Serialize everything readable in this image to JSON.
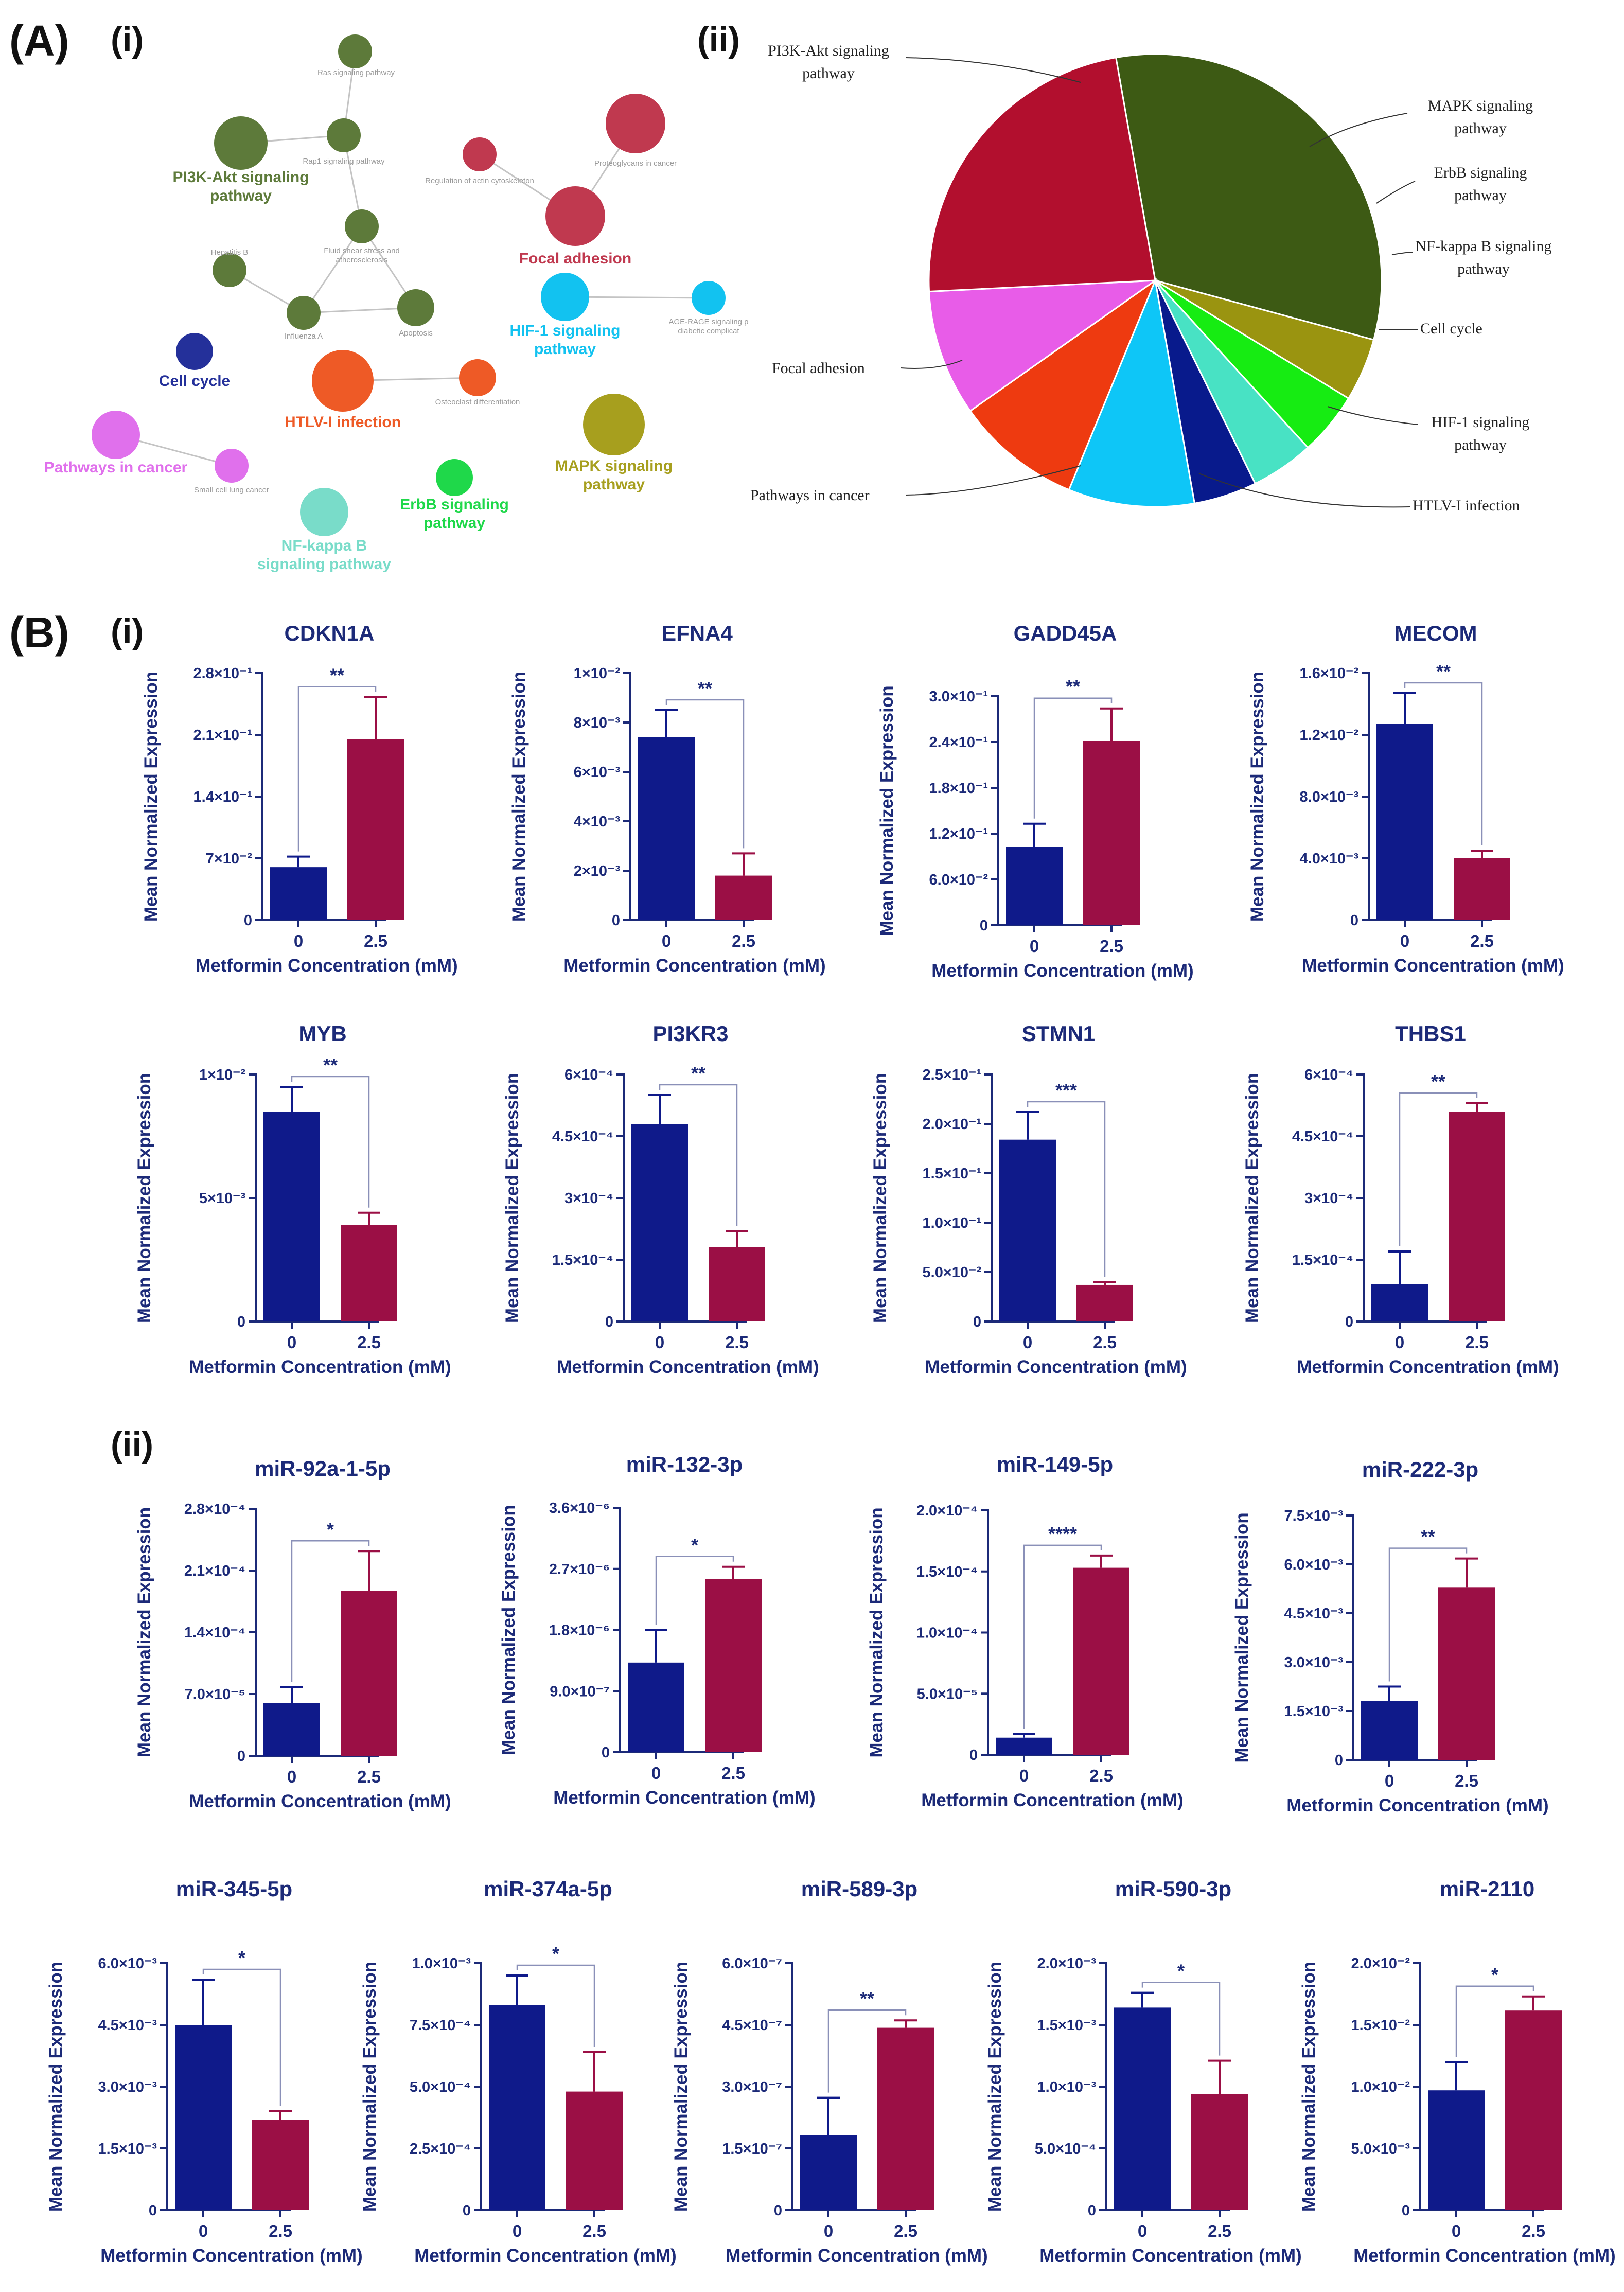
{
  "panel_labels": {
    "A": "(A)",
    "A_i": "(i)",
    "A_ii": "(ii)",
    "B": "(B)",
    "B_i": "(i)",
    "B_ii": "(ii)"
  },
  "colors": {
    "control": "#0f1a8a",
    "treated": "#9b0f45",
    "axis": "#1c2a78",
    "sig_line": "#8a90b8"
  },
  "network": {
    "nodes": [
      {
        "id": "ras",
        "label": "Ras signaling pathway",
        "color": "#5d7a3a",
        "kind": "small"
      },
      {
        "id": "pi3k",
        "label": "PI3K-Akt signaling pathway",
        "color": "#5d7a3a",
        "kind": "main"
      },
      {
        "id": "rap1",
        "label": "Rap1 signaling pathway",
        "color": "#5d7a3a",
        "kind": "small"
      },
      {
        "id": "fluid",
        "label": "Fluid shear stress and atherosclerosis",
        "color": "#5d7a3a",
        "kind": "small"
      },
      {
        "id": "hepb",
        "label": "Hepatitis B",
        "color": "#5d7a3a",
        "kind": "small"
      },
      {
        "id": "flua",
        "label": "Influenza A",
        "color": "#5d7a3a",
        "kind": "small"
      },
      {
        "id": "apop",
        "label": "Apoptosis",
        "color": "#5d7a3a",
        "kind": "small"
      },
      {
        "id": "actin",
        "label": "Regulation of actin cytoskeleton",
        "color": "#c0394f",
        "kind": "small"
      },
      {
        "id": "proteo",
        "label": "Proteoglycans in cancer",
        "color": "#c0394f",
        "kind": "small"
      },
      {
        "id": "focal",
        "label": "Focal adhesion",
        "color": "#c0394f",
        "kind": "main"
      },
      {
        "id": "hif1",
        "label": "HIF-1 signaling pathway",
        "color": "#12c2f0",
        "kind": "main"
      },
      {
        "id": "age",
        "label": "AGE-RAGE signaling p diabetic complicat",
        "color": "#12c2f0",
        "kind": "small"
      },
      {
        "id": "cell",
        "label": "Cell cycle",
        "color": "#24309a",
        "kind": "main"
      },
      {
        "id": "htlv",
        "label": "HTLV-I infection",
        "color": "#ee5a26",
        "kind": "main"
      },
      {
        "id": "osteo",
        "label": "Osteoclast differentiation",
        "color": "#ee5a26",
        "kind": "small"
      },
      {
        "id": "mapk",
        "label": "MAPK signaling pathway",
        "color": "#a79f1e",
        "kind": "main"
      },
      {
        "id": "pathc",
        "label": "Pathways in cancer",
        "color": "#e070ec",
        "kind": "main"
      },
      {
        "id": "sclc",
        "label": "Small cell lung cancer",
        "color": "#e070ec",
        "kind": "small"
      },
      {
        "id": "erbb",
        "label": "ErbB signaling pathway",
        "color": "#1fd84a",
        "kind": "main"
      },
      {
        "id": "nfkb",
        "label": "NF-kappa B signaling pathway",
        "color": "#79dcc9",
        "kind": "main"
      }
    ]
  },
  "chart_data": [
    {
      "type": "pie",
      "title": "",
      "slices": [
        {
          "label": "PI3K-Akt signaling pathway",
          "value": 32,
          "color": "#3d5a14"
        },
        {
          "label": "MAPK signaling pathway",
          "value": 4.5,
          "color": "#9a9410"
        },
        {
          "label": "ErbB signaling pathway",
          "value": 4.5,
          "color": "#16ec12"
        },
        {
          "label": "NF-kappa B signaling pathway",
          "value": 4.5,
          "color": "#48e2c4"
        },
        {
          "label": "Cell cycle",
          "value": 4.5,
          "color": "#081a8c"
        },
        {
          "label": "HIF-1 signaling pathway",
          "value": 9,
          "color": "#0ec6f7"
        },
        {
          "label": "HTLV-I infection",
          "value": 9,
          "color": "#ee3a10"
        },
        {
          "label": "Pathways in cancer",
          "value": 9,
          "color": "#e85ce8"
        },
        {
          "label": "Focal adhesion",
          "value": 23,
          "color": "#b20f2e"
        }
      ]
    },
    {
      "type": "bar",
      "title": "CDKN1A",
      "xlabel": "Metformin Concentration (mM)",
      "ylabel": "Mean Normalized Expression",
      "categories": [
        "0",
        "2.5"
      ],
      "values": [
        0.06,
        0.205
      ],
      "errors": [
        0.012,
        0.048
      ],
      "ylim": [
        0,
        0.28
      ],
      "ticks": [
        0,
        0.07,
        0.14,
        0.21,
        0.28
      ],
      "tick_labels": [
        "0",
        "7×10⁻²",
        "1.4×10⁻¹",
        "2.1×10⁻¹",
        "2.8×10⁻¹"
      ],
      "significance": "**"
    },
    {
      "type": "bar",
      "title": "EFNA4",
      "xlabel": "Metformin Concentration (mM)",
      "ylabel": "Mean Normalized Expression",
      "categories": [
        "0",
        "2.5"
      ],
      "values": [
        0.0074,
        0.0018
      ],
      "errors": [
        0.0011,
        0.0009
      ],
      "ylim": [
        0,
        0.01
      ],
      "ticks": [
        0,
        0.002,
        0.004,
        0.006,
        0.008,
        0.01
      ],
      "tick_labels": [
        "0",
        "2×10⁻³",
        "4×10⁻³",
        "6×10⁻³",
        "8×10⁻³",
        "1×10⁻²"
      ],
      "significance": "**"
    },
    {
      "type": "bar",
      "title": "GADD45A",
      "xlabel": "Metformin Concentration (mM)",
      "ylabel": "Mean Normalized Expression",
      "categories": [
        "0",
        "2.5"
      ],
      "values": [
        0.103,
        0.242
      ],
      "errors": [
        0.03,
        0.042
      ],
      "ylim": [
        0,
        0.3
      ],
      "ticks": [
        0,
        0.06,
        0.12,
        0.18,
        0.24,
        0.3
      ],
      "tick_labels": [
        "0",
        "6.0×10⁻²",
        "1.2×10⁻¹",
        "1.8×10⁻¹",
        "2.4×10⁻¹",
        "3.0×10⁻¹"
      ],
      "significance": "**"
    },
    {
      "type": "bar",
      "title": "MECOM",
      "xlabel": "Metformin Concentration (mM)",
      "ylabel": "Mean Normalized Expression",
      "categories": [
        "0",
        "2.5"
      ],
      "values": [
        0.0127,
        0.004
      ],
      "errors": [
        0.002,
        0.0005
      ],
      "ylim": [
        0,
        0.016
      ],
      "ticks": [
        0,
        0.004,
        0.008,
        0.012,
        0.016
      ],
      "tick_labels": [
        "0",
        "4.0×10⁻³",
        "8.0×10⁻³",
        "1.2×10⁻²",
        "1.6×10⁻²"
      ],
      "significance": "**"
    },
    {
      "type": "bar",
      "title": "MYB",
      "xlabel": "Metformin Concentration (mM)",
      "ylabel": "Mean Normalized Expression",
      "categories": [
        "0",
        "2.5"
      ],
      "values": [
        0.0085,
        0.0039
      ],
      "errors": [
        0.001,
        0.0005
      ],
      "ylim": [
        0,
        0.01
      ],
      "ticks": [
        0,
        0.005,
        0.01
      ],
      "tick_labels": [
        "0",
        "5×10⁻³",
        "1×10⁻²"
      ],
      "significance": "**"
    },
    {
      "type": "bar",
      "title": "PI3KR3",
      "xlabel": "Metformin Concentration (mM)",
      "ylabel": "Mean Normalized Expression",
      "categories": [
        "0",
        "2.5"
      ],
      "values": [
        0.00048,
        0.00018
      ],
      "errors": [
        7e-05,
        4e-05
      ],
      "ylim": [
        0,
        0.0006
      ],
      "ticks": [
        0,
        0.00015,
        0.0003,
        0.00045,
        0.0006
      ],
      "tick_labels": [
        "0",
        "1.5×10⁻⁴",
        "3×10⁻⁴",
        "4.5×10⁻⁴",
        "6×10⁻⁴"
      ],
      "significance": "**"
    },
    {
      "type": "bar",
      "title": "STMN1",
      "xlabel": "Metformin Concentration (mM)",
      "ylabel": "Mean Normalized Expression",
      "categories": [
        "0",
        "2.5"
      ],
      "values": [
        0.184,
        0.037
      ],
      "errors": [
        0.028,
        0.003
      ],
      "ylim": [
        0,
        0.25
      ],
      "ticks": [
        0,
        0.05,
        0.1,
        0.15,
        0.2,
        0.25
      ],
      "tick_labels": [
        "0",
        "5.0×10⁻²",
        "1.0×10⁻¹",
        "1.5×10⁻¹",
        "2.0×10⁻¹",
        "2.5×10⁻¹"
      ],
      "significance": "***"
    },
    {
      "type": "bar",
      "title": "THBS1",
      "xlabel": "Metformin Concentration (mM)",
      "ylabel": "Mean Normalized Expression",
      "categories": [
        "0",
        "2.5"
      ],
      "values": [
        9e-05,
        0.00051
      ],
      "errors": [
        8e-05,
        2e-05
      ],
      "ylim": [
        0,
        0.0006
      ],
      "ticks": [
        0,
        0.00015,
        0.0003,
        0.00045,
        0.0006
      ],
      "tick_labels": [
        "0",
        "1.5×10⁻⁴",
        "3×10⁻⁴",
        "4.5×10⁻⁴",
        "6×10⁻⁴"
      ],
      "significance": "**"
    },
    {
      "type": "bar",
      "title": "miR-92a-1-5p",
      "xlabel": "Metformin Concentration (mM)",
      "ylabel": "Mean Normalized Expression",
      "categories": [
        "0",
        "2.5"
      ],
      "values": [
        6e-05,
        0.000187
      ],
      "errors": [
        1.8e-05,
        4.5e-05
      ],
      "ylim": [
        0,
        0.00028
      ],
      "ticks": [
        0,
        7e-05,
        0.00014,
        0.00021,
        0.00028
      ],
      "tick_labels": [
        "0",
        "7.0×10⁻⁵",
        "1.4×10⁻⁴",
        "2.1×10⁻⁴",
        "2.8×10⁻⁴"
      ],
      "significance": "*"
    },
    {
      "type": "bar",
      "title": "miR-132-3p",
      "xlabel": "Metformin Concentration (mM)",
      "ylabel": "Mean Normalized Expression",
      "categories": [
        "0",
        "2.5"
      ],
      "values": [
        1.32e-06,
        2.55e-06
      ],
      "errors": [
        4.8e-07,
        1.8e-07
      ],
      "ylim": [
        0,
        3.6e-06
      ],
      "ticks": [
        0,
        9e-07,
        1.8e-06,
        2.7e-06,
        3.6e-06
      ],
      "tick_labels": [
        "0",
        "9.0×10⁻⁷",
        "1.8×10⁻⁶",
        "2.7×10⁻⁶",
        "3.6×10⁻⁶"
      ],
      "significance": "*"
    },
    {
      "type": "bar",
      "title": "miR-149-5p",
      "xlabel": "Metformin Concentration (mM)",
      "ylabel": "Mean Normalized Expression",
      "categories": [
        "0",
        "2.5"
      ],
      "values": [
        1.4e-05,
        0.000153
      ],
      "errors": [
        3e-06,
        1e-05
      ],
      "ylim": [
        0,
        0.0002
      ],
      "ticks": [
        0,
        5e-05,
        0.0001,
        0.00015,
        0.0002
      ],
      "tick_labels": [
        "0",
        "5.0×10⁻⁵",
        "1.0×10⁻⁴",
        "1.5×10⁻⁴",
        "2.0×10⁻⁴"
      ],
      "significance": "****"
    },
    {
      "type": "bar",
      "title": "miR-222-3p",
      "xlabel": "Metformin Concentration (mM)",
      "ylabel": "Mean Normalized Expression",
      "categories": [
        "0",
        "2.5"
      ],
      "values": [
        0.0018,
        0.0053
      ],
      "errors": [
        0.00045,
        0.00088
      ],
      "ylim": [
        0,
        0.0075
      ],
      "ticks": [
        0,
        0.0015,
        0.003,
        0.0045,
        0.006,
        0.0075
      ],
      "tick_labels": [
        "0",
        "1.5×10⁻³",
        "3.0×10⁻³",
        "4.5×10⁻³",
        "6.0×10⁻³",
        "7.5×10⁻³"
      ],
      "significance": "**"
    },
    {
      "type": "bar",
      "title": "miR-345-5p",
      "xlabel": "Metformin Concentration (mM)",
      "ylabel": "Mean Normalized Expression",
      "categories": [
        "0",
        "2.5"
      ],
      "values": [
        0.0045,
        0.0022
      ],
      "errors": [
        0.0011,
        0.0002
      ],
      "ylim": [
        0,
        0.006
      ],
      "ticks": [
        0,
        0.0015,
        0.003,
        0.0045,
        0.006
      ],
      "tick_labels": [
        "0",
        "1.5×10⁻³",
        "3.0×10⁻³",
        "4.5×10⁻³",
        "6.0×10⁻³"
      ],
      "significance": "*"
    },
    {
      "type": "bar",
      "title": "miR-374a-5p",
      "xlabel": "Metformin Concentration (mM)",
      "ylabel": "Mean Normalized Expression",
      "categories": [
        "0",
        "2.5"
      ],
      "values": [
        0.00083,
        0.00048
      ],
      "errors": [
        0.00012,
        0.00016
      ],
      "ylim": [
        0,
        0.001
      ],
      "ticks": [
        0,
        0.00025,
        0.0005,
        0.00075,
        0.001
      ],
      "tick_labels": [
        "0",
        "2.5×10⁻⁴",
        "5.0×10⁻⁴",
        "7.5×10⁻⁴",
        "1.0×10⁻³"
      ],
      "significance": "*"
    },
    {
      "type": "bar",
      "title": "miR-589-3p",
      "xlabel": "Metformin Concentration (mM)",
      "ylabel": "Mean Normalized Expression",
      "categories": [
        "0",
        "2.5"
      ],
      "values": [
        1.83e-07,
        4.43e-07
      ],
      "errors": [
        9e-08,
        1.8e-08
      ],
      "ylim": [
        0,
        6e-07
      ],
      "ticks": [
        0,
        1.5e-07,
        3e-07,
        4.5e-07,
        6e-07
      ],
      "tick_labels": [
        "0",
        "1.5×10⁻⁷",
        "3.0×10⁻⁷",
        "4.5×10⁻⁷",
        "6.0×10⁻⁷"
      ],
      "significance": "**"
    },
    {
      "type": "bar",
      "title": "miR-590-3p",
      "xlabel": "Metformin Concentration (mM)",
      "ylabel": "Mean Normalized Expression",
      "categories": [
        "0",
        "2.5"
      ],
      "values": [
        0.00164,
        0.00094
      ],
      "errors": [
        0.00012,
        0.00027
      ],
      "ylim": [
        0,
        0.002
      ],
      "ticks": [
        0,
        0.0005,
        0.001,
        0.0015,
        0.002
      ],
      "tick_labels": [
        "0",
        "5.0×10⁻⁴",
        "1.0×10⁻³",
        "1.5×10⁻³",
        "2.0×10⁻³"
      ],
      "significance": "*"
    },
    {
      "type": "bar",
      "title": "miR-2110",
      "xlabel": "Metformin Concentration (mM)",
      "ylabel": "Mean Normalized Expression",
      "categories": [
        "0",
        "2.5"
      ],
      "values": [
        0.0097,
        0.0162
      ],
      "errors": [
        0.0023,
        0.0011
      ],
      "ylim": [
        0,
        0.02
      ],
      "ticks": [
        0,
        0.005,
        0.01,
        0.015,
        0.02
      ],
      "tick_labels": [
        "0",
        "5.0×10⁻³",
        "1.0×10⁻²",
        "1.5×10⁻²",
        "2.0×10⁻²"
      ],
      "significance": "*"
    }
  ]
}
